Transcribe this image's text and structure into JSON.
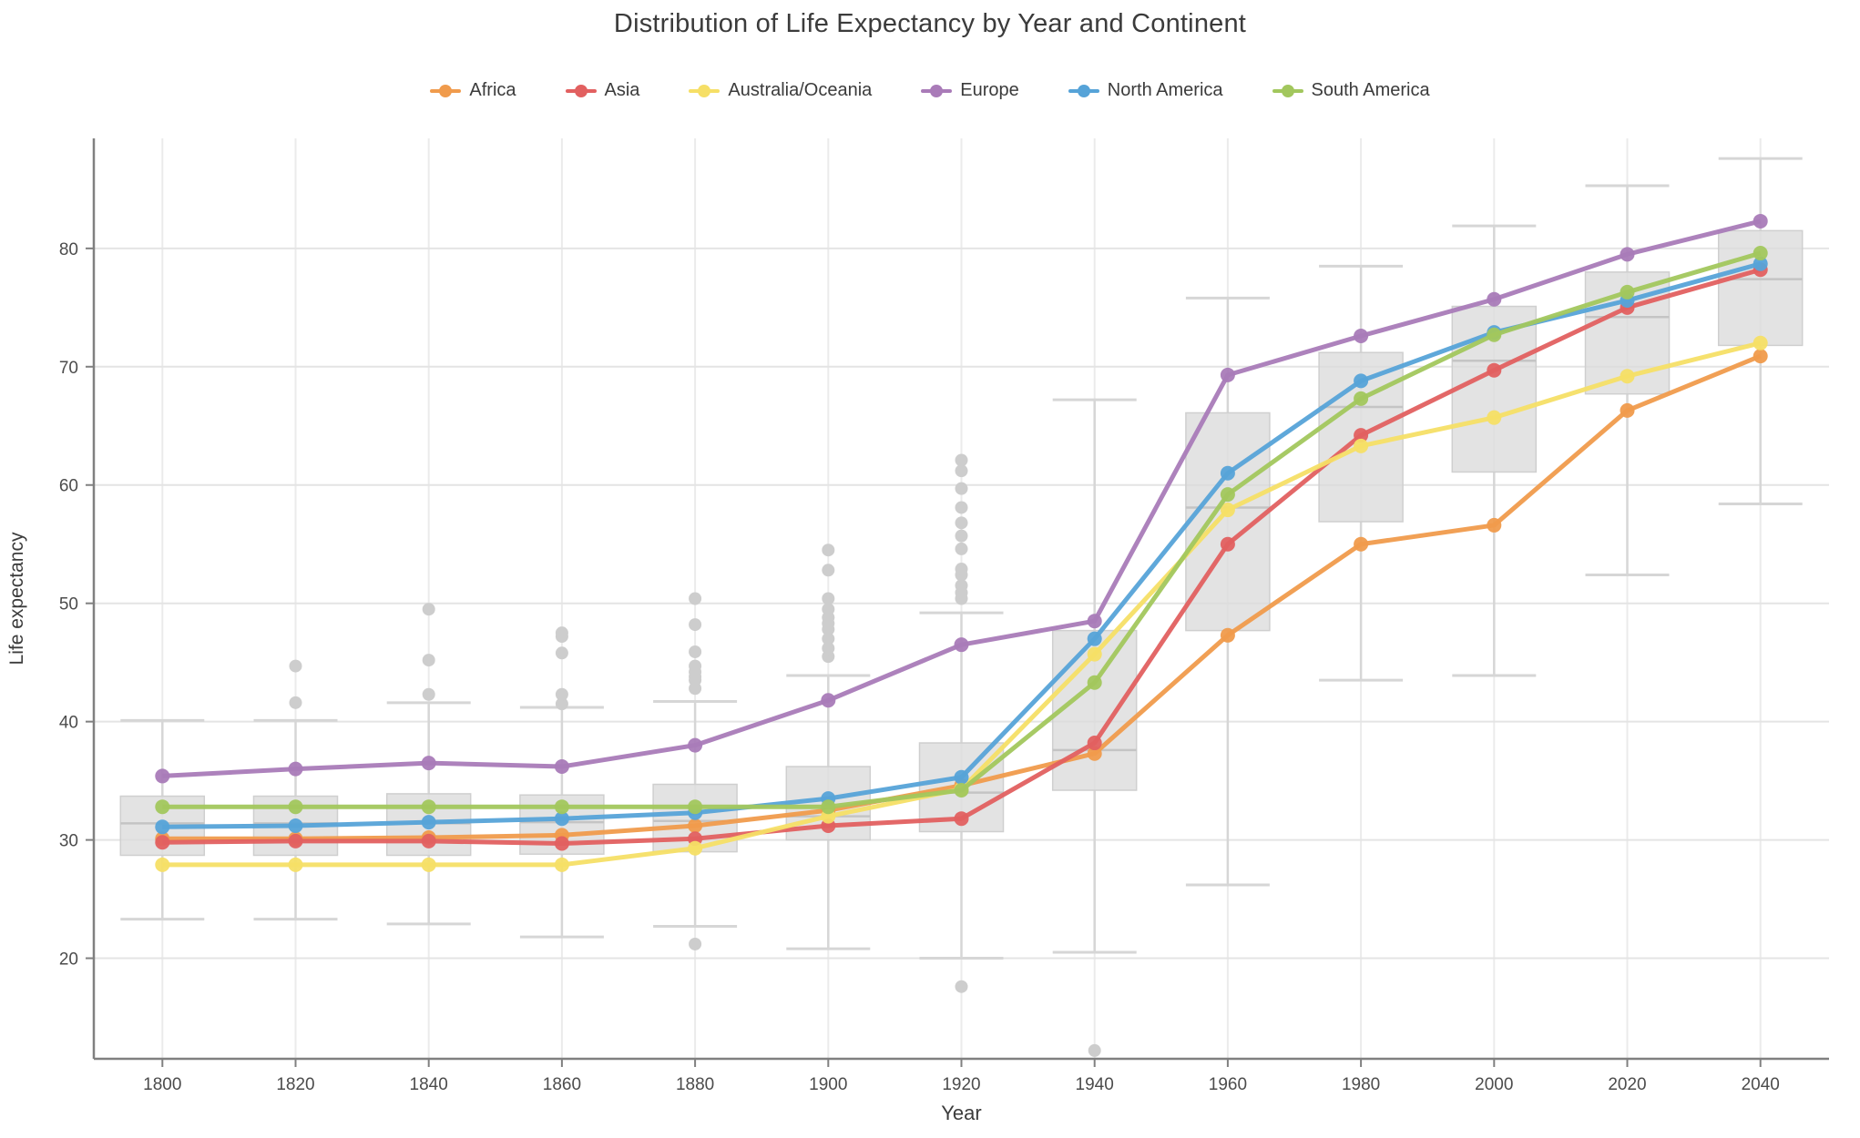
{
  "chart": {
    "title": "Distribution of Life Expectancy by Year and Continent",
    "x_label": "Year",
    "y_label": "Life expectancy"
  },
  "chart_data": {
    "type": "line",
    "title": "Distribution of Life Expectancy by Year and Continent",
    "xlabel": "Year",
    "ylabel": "Life expectancy",
    "legend_position": "top-center",
    "grid": true,
    "x": [
      1800,
      1820,
      1840,
      1860,
      1880,
      1900,
      1920,
      1940,
      1960,
      1980,
      2000,
      2020,
      2040
    ],
    "x_ticks": [
      1800,
      1820,
      1840,
      1860,
      1880,
      1900,
      1920,
      1940,
      1960,
      1980,
      2000,
      2020,
      2040
    ],
    "y_ticks": [
      20,
      30,
      40,
      50,
      60,
      70,
      80
    ],
    "xlim": [
      1789.7,
      2050.3
    ],
    "ylim": [
      11.5,
      89.3
    ],
    "series": [
      {
        "name": "Africa",
        "color": "#f09b4c",
        "values": [
          30.1,
          30.1,
          30.2,
          30.4,
          31.2,
          32.5,
          34.6,
          37.3,
          47.3,
          55.0,
          56.6,
          66.3,
          70.9
        ]
      },
      {
        "name": "Asia",
        "color": "#e26060",
        "values": [
          29.8,
          29.9,
          29.9,
          29.7,
          30.1,
          31.2,
          31.8,
          38.2,
          55.0,
          64.2,
          69.7,
          75.0,
          78.2
        ]
      },
      {
        "name": "Australia/Oceania",
        "color": "#f6df66",
        "values": [
          27.9,
          27.9,
          27.9,
          27.9,
          29.3,
          32.0,
          34.3,
          45.7,
          57.9,
          63.3,
          65.7,
          69.2,
          72.0
        ]
      },
      {
        "name": "Europe",
        "color": "#a97bb8",
        "values": [
          35.4,
          36.0,
          36.5,
          36.2,
          38.0,
          41.8,
          46.5,
          48.5,
          69.3,
          72.6,
          75.7,
          79.5,
          82.3
        ]
      },
      {
        "name": "North America",
        "color": "#56a3d8",
        "values": [
          31.1,
          31.2,
          31.5,
          31.8,
          32.3,
          33.5,
          35.3,
          47.0,
          61.0,
          68.8,
          72.9,
          75.6,
          78.7
        ]
      },
      {
        "name": "South America",
        "color": "#a2c75d",
        "values": [
          32.8,
          32.8,
          32.8,
          32.8,
          32.8,
          32.8,
          34.2,
          43.3,
          59.2,
          67.3,
          72.7,
          76.3,
          79.6
        ]
      }
    ],
    "boxplots": [
      {
        "year": 1800,
        "whisker_low": 23.3,
        "q1": 28.7,
        "median": 31.4,
        "q3": 33.7,
        "whisker_high": 40.1,
        "outliers": []
      },
      {
        "year": 1820,
        "whisker_low": 23.3,
        "q1": 28.7,
        "median": 31.4,
        "q3": 33.7,
        "whisker_high": 40.1,
        "outliers": [
          41.6,
          44.7
        ]
      },
      {
        "year": 1840,
        "whisker_low": 22.9,
        "q1": 28.7,
        "median": 31.4,
        "q3": 33.9,
        "whisker_high": 41.6,
        "outliers": [
          42.3,
          45.2,
          49.5
        ]
      },
      {
        "year": 1860,
        "whisker_low": 21.8,
        "q1": 28.8,
        "median": 31.5,
        "q3": 33.8,
        "whisker_high": 41.2,
        "outliers": [
          41.5,
          42.3,
          45.8,
          47.2,
          47.5
        ]
      },
      {
        "year": 1880,
        "whisker_low": 22.7,
        "q1": 29.0,
        "median": 31.6,
        "q3": 34.7,
        "whisker_high": 41.7,
        "outliers": [
          21.2,
          42.8,
          43.5,
          43.8,
          44.2,
          44.7,
          45.9,
          48.2,
          50.4
        ]
      },
      {
        "year": 1900,
        "whisker_low": 20.8,
        "q1": 30.0,
        "median": 32.0,
        "q3": 36.2,
        "whisker_high": 43.9,
        "outliers": [
          45.5,
          46.2,
          47.0,
          47.8,
          48.3,
          48.8,
          49.5,
          50.4,
          52.8,
          54.5
        ]
      },
      {
        "year": 1920,
        "whisker_low": 20.0,
        "q1": 30.7,
        "median": 34.0,
        "q3": 38.2,
        "whisker_high": 49.2,
        "outliers": [
          17.6,
          50.4,
          50.9,
          51.5,
          52.4,
          52.9,
          54.6,
          55.7,
          56.8,
          58.1,
          59.7,
          61.2,
          62.1
        ]
      },
      {
        "year": 1940,
        "whisker_low": 20.5,
        "q1": 34.2,
        "median": 37.6,
        "q3": 47.7,
        "whisker_high": 67.2,
        "outliers": [
          12.2
        ]
      },
      {
        "year": 1960,
        "whisker_low": 26.2,
        "q1": 47.7,
        "median": 58.1,
        "q3": 66.1,
        "whisker_high": 75.8,
        "outliers": []
      },
      {
        "year": 1980,
        "whisker_low": 43.5,
        "q1": 56.9,
        "median": 66.6,
        "q3": 71.2,
        "whisker_high": 78.5,
        "outliers": []
      },
      {
        "year": 2000,
        "whisker_low": 43.9,
        "q1": 61.1,
        "median": 70.5,
        "q3": 75.1,
        "whisker_high": 81.9,
        "outliers": []
      },
      {
        "year": 2020,
        "whisker_low": 52.4,
        "q1": 67.7,
        "median": 74.2,
        "q3": 78.0,
        "whisker_high": 85.3,
        "outliers": []
      },
      {
        "year": 2040,
        "whisker_low": 58.4,
        "q1": 71.8,
        "median": 77.4,
        "q3": 81.5,
        "whisker_high": 87.6,
        "outliers": []
      }
    ]
  },
  "style": {
    "title_color": "#3b3b3b",
    "tick_label_color": "#4c4c4c",
    "axis_label_color": "#3c3c3c",
    "axis_line_color": "#808080",
    "grid_color_h": "#e4e4e4",
    "grid_color_v": "#ebebeb",
    "box_fill": "#dbdbdb",
    "box_stroke": "#cfcfcf",
    "median_color": "#c4c4c4",
    "whisker_color": "#d6d6d6",
    "outlier_color": "#cdcdcd"
  }
}
